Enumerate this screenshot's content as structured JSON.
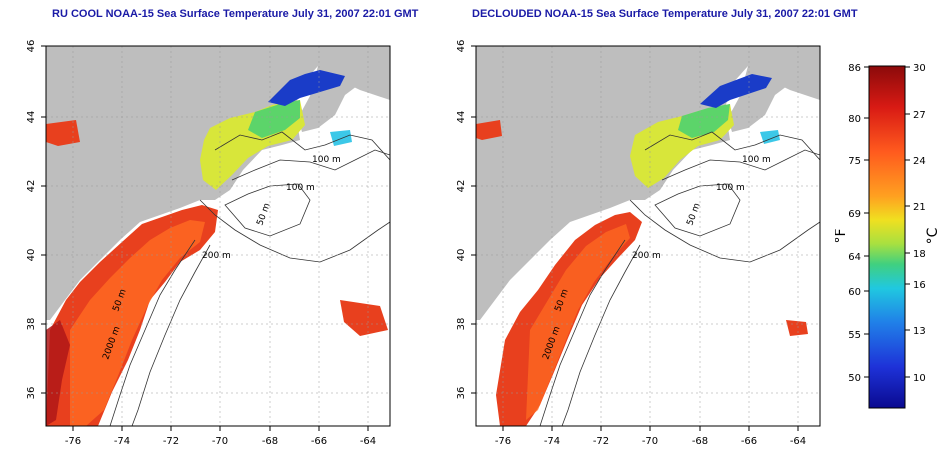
{
  "panels": [
    {
      "id": "left",
      "title": "RU COOL NOAA-15 Sea Surface Temperature July 31, 2007 22:01 GMT",
      "contours": [
        "100 m",
        "100 m",
        "50 m",
        "200 m",
        "50 m",
        "2000 m"
      ]
    },
    {
      "id": "right",
      "title": "DECLOUDED NOAA-15 Sea Surface Temperature July 31, 2007 22:01 GMT",
      "contours": [
        "100 m",
        "100 m",
        "50 m",
        "200 m",
        "50 m",
        "2000 m"
      ]
    }
  ],
  "axes": {
    "lon_ticks": [
      "-76",
      "-74",
      "-72",
      "-70",
      "-68",
      "-66",
      "-64"
    ],
    "lat_ticks": [
      "46",
      "44",
      "42",
      "40",
      "38",
      "36"
    ]
  },
  "colorbar": {
    "f_label": "°F",
    "c_label": "°C",
    "f_ticks": [
      "86",
      "80",
      "75",
      "69",
      "64",
      "60",
      "55",
      "50"
    ],
    "c_ticks": [
      "30",
      "27",
      "24",
      "21",
      "18",
      "16",
      "13",
      "10"
    ]
  },
  "colors": {
    "land": "#bebebe",
    "title": "#1a1aa6",
    "warm": "#e8401e",
    "cold": "#1a3cc8"
  }
}
